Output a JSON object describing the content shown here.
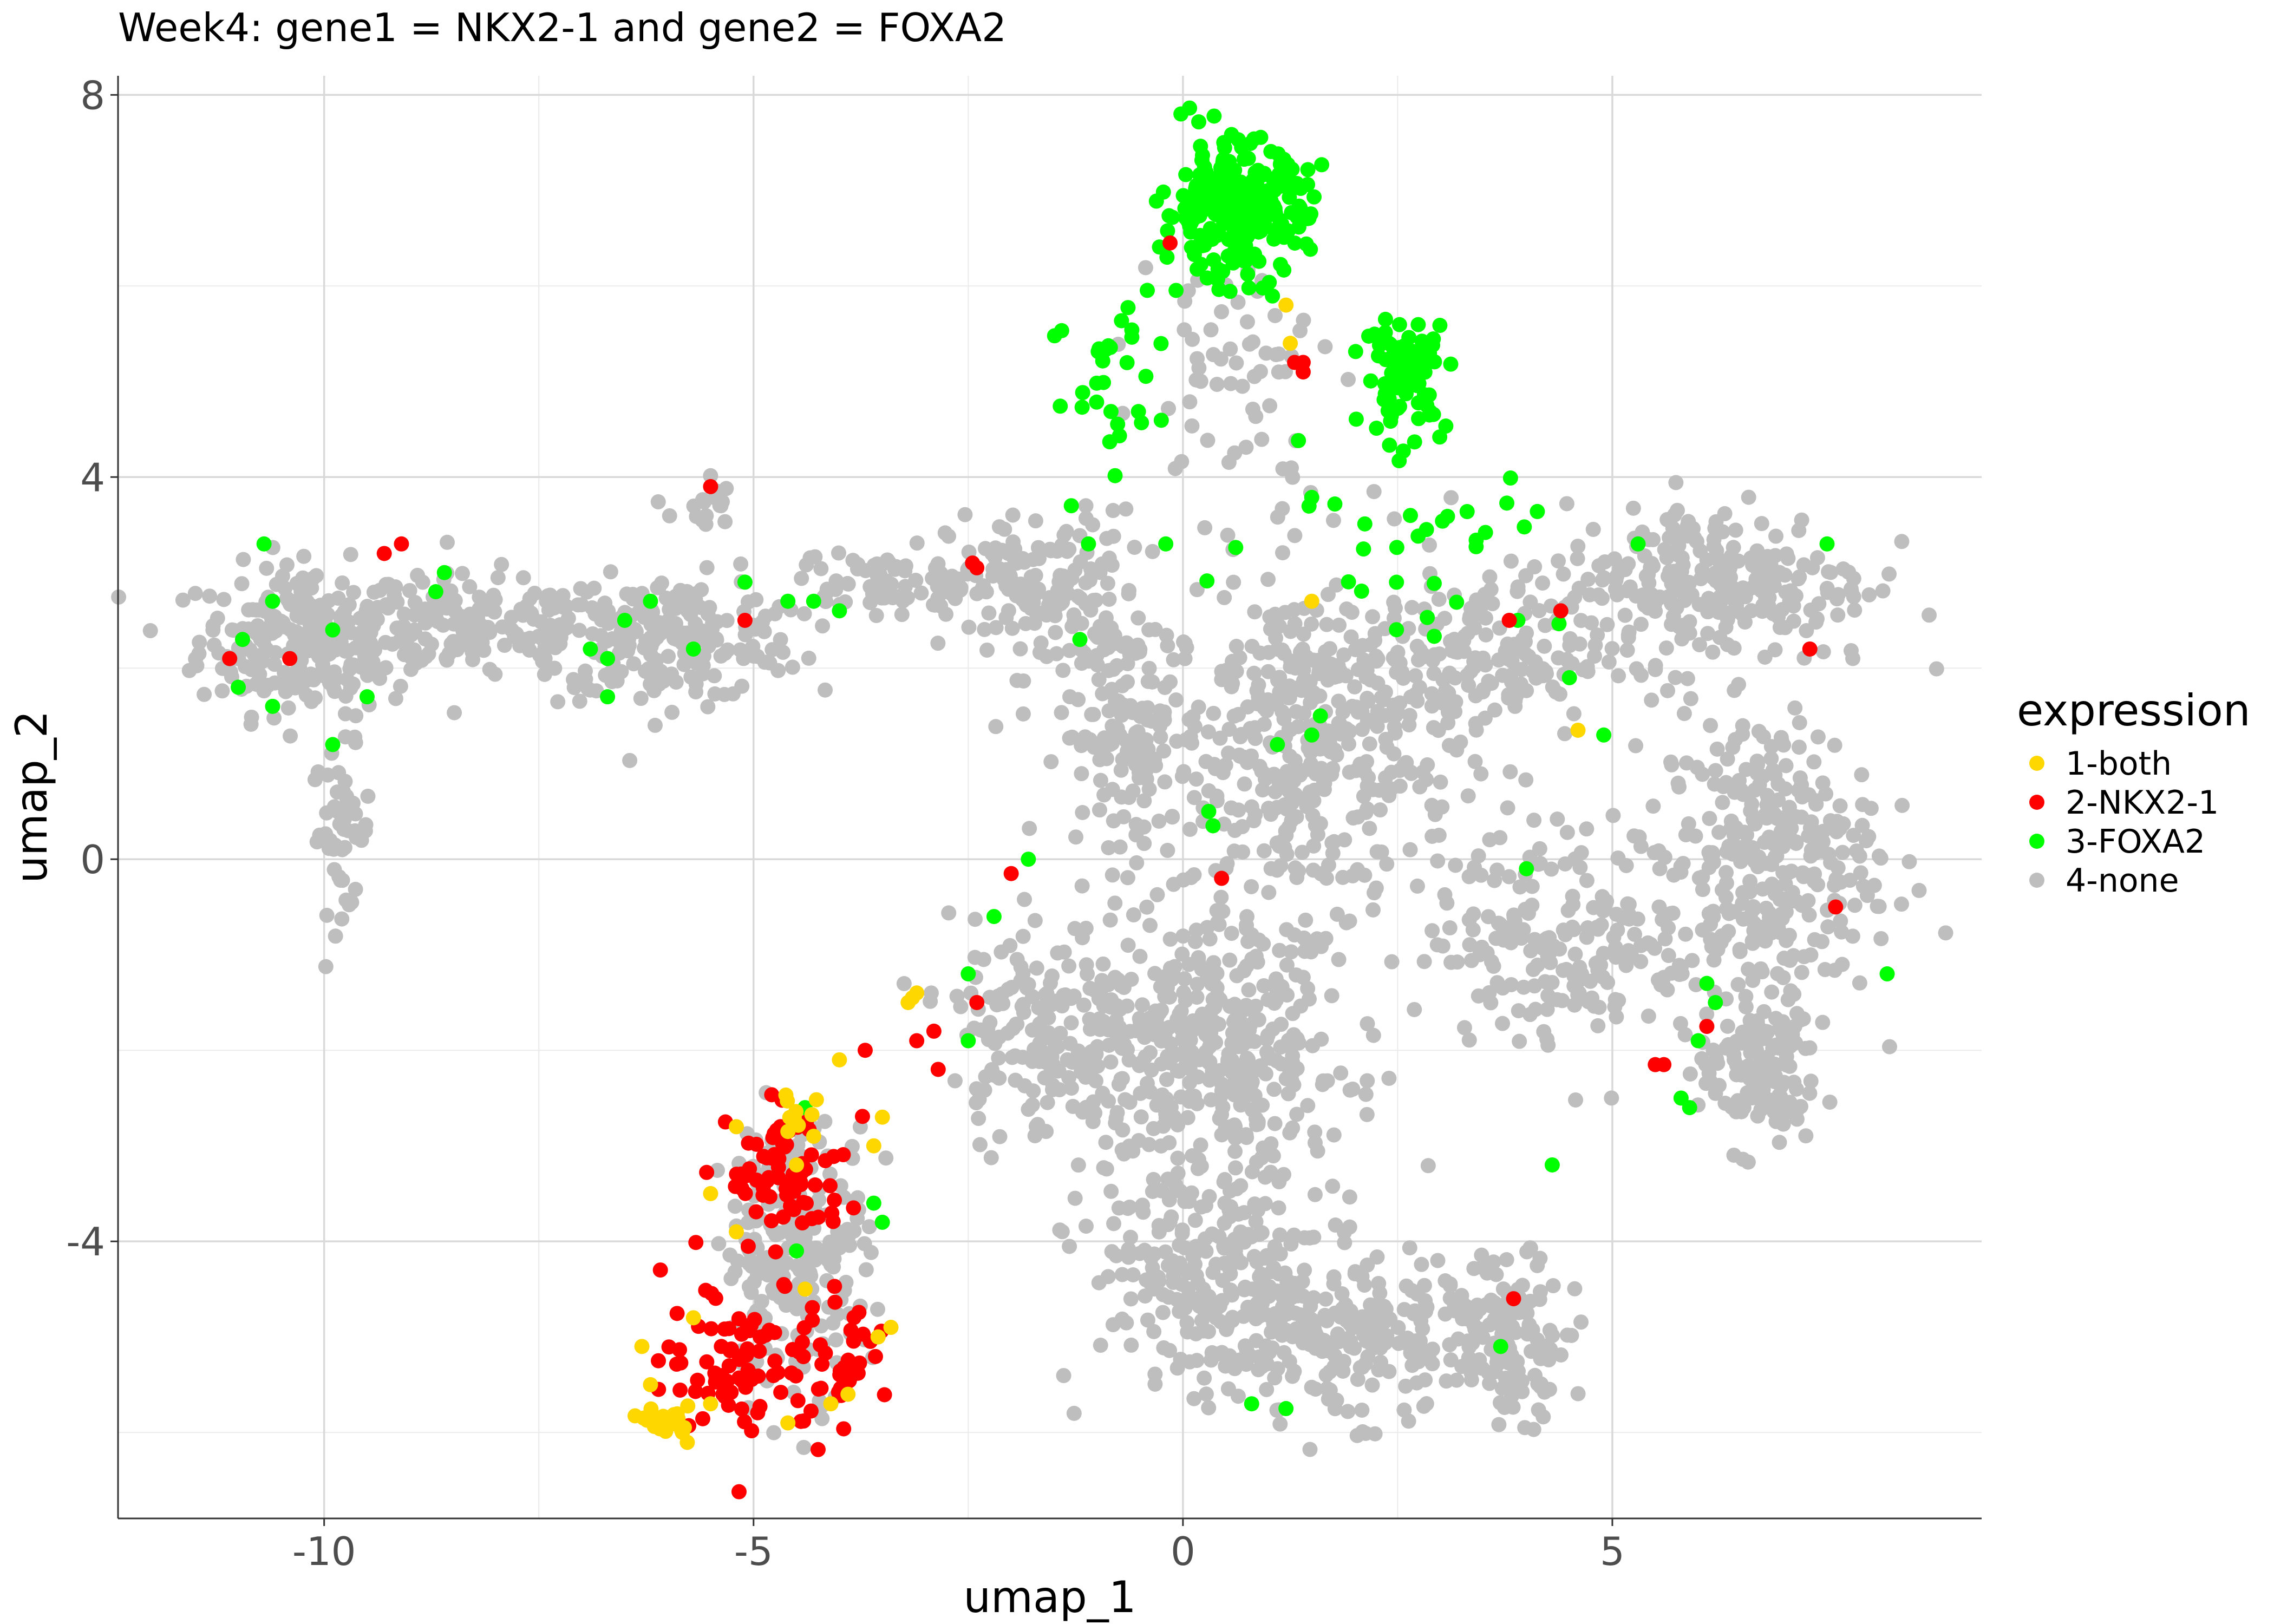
{
  "chart_data": {
    "type": "scatter",
    "title": "Week4: gene1 = NKX2-1 and gene2 = FOXA2",
    "xlabel": "umap_1",
    "ylabel": "umap_2",
    "xlim": [
      -12.4,
      9.3
    ],
    "ylim": [
      -6.9,
      8.2
    ],
    "x_ticks": [
      -10,
      -5,
      0,
      5
    ],
    "x_tick_labels": [
      "-10",
      "-5",
      "0",
      "5"
    ],
    "y_ticks": [
      -4,
      0,
      4,
      8
    ],
    "y_tick_labels": [
      "-4",
      "0",
      "4",
      "8"
    ],
    "grid": true,
    "legend": {
      "title": "expression",
      "position": "right"
    },
    "series": [
      {
        "name": "4-none",
        "color": "#BEBEBE",
        "clusters": [
          {
            "cx": -10.2,
            "cy": 2.3,
            "sx": 0.9,
            "sy": 0.55,
            "n": 260
          },
          {
            "cx": -9.8,
            "cy": 0.3,
            "sx": 0.25,
            "sy": 0.6,
            "n": 50
          },
          {
            "cx": -8.2,
            "cy": 2.4,
            "sx": 1.2,
            "sy": 0.4,
            "n": 150
          },
          {
            "cx": -6.0,
            "cy": 2.3,
            "sx": 1.1,
            "sy": 0.45,
            "n": 220
          },
          {
            "cx": -5.6,
            "cy": 3.7,
            "sx": 0.25,
            "sy": 0.25,
            "n": 18
          },
          {
            "cx": -3.5,
            "cy": 2.9,
            "sx": 0.9,
            "sy": 0.25,
            "n": 80
          },
          {
            "cx": -1.6,
            "cy": 2.8,
            "sx": 0.8,
            "sy": 0.6,
            "n": 160
          },
          {
            "cx": -0.6,
            "cy": 1.3,
            "sx": 0.6,
            "sy": 0.8,
            "n": 140
          },
          {
            "cx": 1.5,
            "cy": 1.2,
            "sx": 1.2,
            "sy": 1.3,
            "n": 420
          },
          {
            "cx": 3.5,
            "cy": 2.1,
            "sx": 1.0,
            "sy": 0.6,
            "n": 150
          },
          {
            "cx": 6.2,
            "cy": 2.9,
            "sx": 1.3,
            "sy": 0.6,
            "n": 260
          },
          {
            "cx": 6.8,
            "cy": 0.0,
            "sx": 0.9,
            "sy": 1.1,
            "n": 300
          },
          {
            "cx": 6.7,
            "cy": -2.2,
            "sx": 0.5,
            "sy": 0.6,
            "n": 140
          },
          {
            "cx": 4.5,
            "cy": -0.8,
            "sx": 1.1,
            "sy": 0.8,
            "n": 200
          },
          {
            "cx": -1.6,
            "cy": -1.8,
            "sx": 0.8,
            "sy": 0.8,
            "n": 180
          },
          {
            "cx": 0.4,
            "cy": -2.0,
            "sx": 1.1,
            "sy": 1.0,
            "n": 380
          },
          {
            "cx": 0.3,
            "cy": -4.3,
            "sx": 1.0,
            "sy": 0.8,
            "n": 220
          },
          {
            "cx": 1.8,
            "cy": -5.0,
            "sx": 1.1,
            "sy": 0.6,
            "n": 240
          },
          {
            "cx": 3.8,
            "cy": -5.0,
            "sx": 0.5,
            "sy": 0.6,
            "n": 130
          },
          {
            "cx": -4.5,
            "cy": -4.1,
            "sx": 0.6,
            "sy": 1.0,
            "n": 230
          },
          {
            "cx": 0.6,
            "cy": 5.2,
            "sx": 0.8,
            "sy": 0.9,
            "n": 60
          }
        ]
      },
      {
        "name": "3-FOXA2",
        "color": "#00FF00",
        "clusters": [
          {
            "cx": 0.6,
            "cy": 6.8,
            "sx": 0.6,
            "sy": 0.5,
            "n": 260
          },
          {
            "cx": 2.6,
            "cy": 5.1,
            "sx": 0.35,
            "sy": 0.4,
            "n": 80
          },
          {
            "cx": -0.7,
            "cy": 5.0,
            "sx": 0.6,
            "sy": 0.8,
            "n": 30
          },
          {
            "cx": 2.6,
            "cy": 3.6,
            "sx": 1.3,
            "sy": 0.9,
            "n": 35
          }
        ],
        "points": [
          [
            -10.7,
            3.3
          ],
          [
            -10.6,
            2.7
          ],
          [
            -10.95,
            2.3
          ],
          [
            -11.0,
            1.8
          ],
          [
            -10.6,
            1.6
          ],
          [
            -9.9,
            2.4
          ],
          [
            -9.9,
            1.2
          ],
          [
            -9.5,
            1.7
          ],
          [
            -8.7,
            2.8
          ],
          [
            -8.6,
            3.0
          ],
          [
            -6.9,
            2.2
          ],
          [
            -6.7,
            2.1
          ],
          [
            -6.5,
            2.5
          ],
          [
            -6.2,
            2.7
          ],
          [
            -6.7,
            1.7
          ],
          [
            -5.7,
            2.2
          ],
          [
            -5.1,
            2.9
          ],
          [
            -4.6,
            2.7
          ],
          [
            -4.3,
            2.7
          ],
          [
            -4.0,
            2.6
          ],
          [
            -1.3,
            3.7
          ],
          [
            -1.1,
            3.3
          ],
          [
            -1.2,
            2.3
          ],
          [
            -0.2,
            3.3
          ],
          [
            0.3,
            0.5
          ],
          [
            0.35,
            0.35
          ],
          [
            -1.8,
            0.0
          ],
          [
            -2.2,
            -0.6
          ],
          [
            -2.5,
            -1.2
          ],
          [
            -2.5,
            -1.9
          ],
          [
            -4.4,
            -2.6
          ],
          [
            -4.5,
            -4.1
          ],
          [
            -3.6,
            -3.6
          ],
          [
            -3.5,
            -3.8
          ],
          [
            1.1,
            1.2
          ],
          [
            1.5,
            1.3
          ],
          [
            1.6,
            1.5
          ],
          [
            3.9,
            2.5
          ],
          [
            4.0,
            -0.1
          ],
          [
            4.5,
            1.9
          ],
          [
            4.9,
            1.3
          ],
          [
            5.3,
            3.3
          ],
          [
            6.1,
            -1.3
          ],
          [
            6.2,
            -1.5
          ],
          [
            6.0,
            -1.9
          ],
          [
            5.8,
            -2.5
          ],
          [
            5.9,
            -2.6
          ],
          [
            4.3,
            -3.2
          ],
          [
            3.7,
            -5.1
          ],
          [
            0.8,
            -5.7
          ],
          [
            1.2,
            -5.75
          ],
          [
            7.5,
            3.3
          ],
          [
            8.2,
            -1.2
          ]
        ]
      },
      {
        "name": "2-NKX2-1",
        "color": "#FF0000",
        "clusters": [
          {
            "cx": -5.2,
            "cy": -5.2,
            "sx": 0.6,
            "sy": 0.6,
            "n": 80
          },
          {
            "cx": -4.6,
            "cy": -3.3,
            "sx": 0.5,
            "sy": 0.5,
            "n": 80
          },
          {
            "cx": -4.0,
            "cy": -5.3,
            "sx": 0.45,
            "sy": 0.45,
            "n": 40
          }
        ],
        "points": [
          [
            -11.1,
            2.1
          ],
          [
            -10.4,
            2.1
          ],
          [
            -9.3,
            3.2
          ],
          [
            -9.1,
            3.3
          ],
          [
            -5.5,
            3.9
          ],
          [
            -5.1,
            2.5
          ],
          [
            -2.45,
            3.1
          ],
          [
            -2.4,
            3.05
          ],
          [
            -0.15,
            6.45
          ],
          [
            1.3,
            5.2
          ],
          [
            1.4,
            5.2
          ],
          [
            1.4,
            5.1
          ],
          [
            -2.0,
            -0.15
          ],
          [
            0.45,
            -0.2
          ],
          [
            3.8,
            2.5
          ],
          [
            4.4,
            2.6
          ],
          [
            7.3,
            2.2
          ],
          [
            7.6,
            -0.5
          ],
          [
            6.1,
            -1.75
          ],
          [
            5.5,
            -2.15
          ],
          [
            5.6,
            -2.15
          ],
          [
            -3.7,
            -2.0
          ],
          [
            -3.1,
            -1.9
          ],
          [
            -2.9,
            -1.8
          ],
          [
            -2.4,
            -1.5
          ],
          [
            -2.85,
            -2.2
          ],
          [
            3.85,
            -4.6
          ]
        ]
      },
      {
        "name": "1-both",
        "color": "#FFD700",
        "clusters": [
          {
            "cx": -6.0,
            "cy": -5.9,
            "sx": 0.18,
            "sy": 0.12,
            "n": 22
          },
          {
            "cx": -4.5,
            "cy": -2.6,
            "sx": 0.2,
            "sy": 0.15,
            "n": 8
          }
        ],
        "points": [
          [
            1.2,
            5.8
          ],
          [
            1.25,
            5.4
          ],
          [
            1.5,
            2.7
          ],
          [
            4.6,
            1.35
          ],
          [
            -3.2,
            -1.5
          ],
          [
            -3.15,
            -1.45
          ],
          [
            -3.1,
            -1.4
          ],
          [
            -4.0,
            -2.1
          ],
          [
            -5.2,
            -2.8
          ],
          [
            -4.6,
            -2.85
          ],
          [
            -4.3,
            -2.9
          ],
          [
            -4.5,
            -3.2
          ],
          [
            -5.5,
            -3.5
          ],
          [
            -5.2,
            -3.9
          ],
          [
            -3.6,
            -3.0
          ],
          [
            -3.5,
            -2.7
          ],
          [
            -4.4,
            -4.5
          ],
          [
            -5.7,
            -4.8
          ],
          [
            -6.3,
            -5.1
          ],
          [
            -5.5,
            -5.7
          ],
          [
            -4.6,
            -5.9
          ],
          [
            -3.9,
            -5.6
          ],
          [
            -4.1,
            -5.7
          ],
          [
            -3.55,
            -5.0
          ],
          [
            -3.4,
            -4.9
          ],
          [
            -6.2,
            -5.5
          ]
        ]
      }
    ]
  }
}
